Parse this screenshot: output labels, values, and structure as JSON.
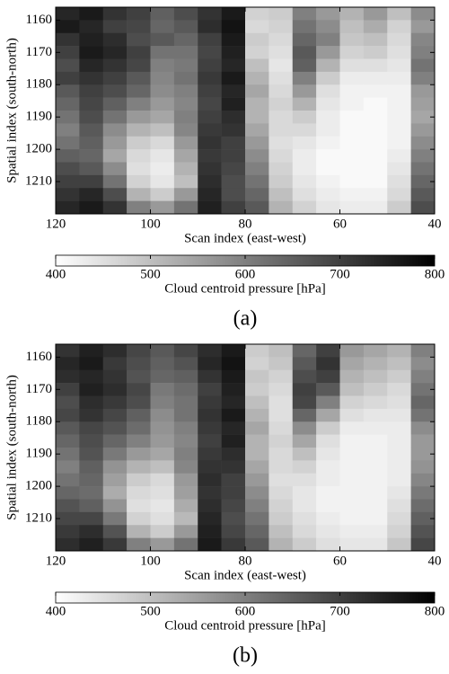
{
  "chart_data": [
    {
      "type": "heatmap",
      "caption": "(a)",
      "x_label": "Scan index (east-west)",
      "y_label": "Spatial index (south-north)",
      "xlim": [
        120,
        40
      ],
      "xticks": [
        120,
        100,
        80,
        60,
        40
      ],
      "ylim": [
        1220,
        1156
      ],
      "yticks": [
        1160,
        1170,
        1180,
        1190,
        1200,
        1210
      ],
      "x": [
        117.5,
        112.5,
        107.5,
        102.5,
        97.5,
        92.5,
        87.5,
        82.5,
        77.5,
        72.5,
        67.5,
        62.5,
        57.5,
        52.5,
        47.5,
        42.5
      ],
      "y": [
        1158,
        1162,
        1166,
        1170,
        1174,
        1178,
        1182,
        1186,
        1190,
        1194,
        1198,
        1202,
        1206,
        1210,
        1214,
        1218
      ],
      "z": [
        [
          740,
          760,
          720,
          700,
          650,
          680,
          720,
          760,
          470,
          480,
          600,
          560,
          520,
          560,
          500,
          580
        ],
        [
          760,
          740,
          700,
          690,
          640,
          660,
          730,
          770,
          460,
          470,
          620,
          580,
          500,
          530,
          470,
          560
        ],
        [
          720,
          750,
          730,
          680,
          660,
          640,
          700,
          760,
          480,
          460,
          640,
          600,
          490,
          500,
          460,
          590
        ],
        [
          700,
          760,
          740,
          700,
          620,
          620,
          690,
          750,
          470,
          450,
          660,
          560,
          470,
          480,
          450,
          600
        ],
        [
          680,
          740,
          720,
          690,
          600,
          610,
          700,
          740,
          500,
          440,
          650,
          520,
          450,
          450,
          440,
          620
        ],
        [
          700,
          720,
          700,
          660,
          590,
          620,
          710,
          760,
          520,
          450,
          600,
          480,
          430,
          430,
          430,
          600
        ],
        [
          660,
          700,
          680,
          640,
          580,
          600,
          700,
          740,
          540,
          460,
          560,
          450,
          420,
          420,
          420,
          560
        ],
        [
          640,
          690,
          650,
          600,
          560,
          590,
          690,
          750,
          520,
          470,
          520,
          440,
          420,
          410,
          420,
          550
        ],
        [
          620,
          680,
          620,
          560,
          540,
          600,
          700,
          730,
          520,
          460,
          480,
          430,
          410,
          410,
          420,
          540
        ],
        [
          600,
          660,
          580,
          520,
          500,
          590,
          710,
          720,
          540,
          460,
          460,
          430,
          410,
          410,
          420,
          560
        ],
        [
          620,
          650,
          560,
          480,
          460,
          560,
          720,
          700,
          560,
          450,
          440,
          420,
          410,
          410,
          420,
          580
        ],
        [
          650,
          640,
          540,
          460,
          440,
          540,
          710,
          700,
          580,
          460,
          430,
          410,
          410,
          410,
          430,
          600
        ],
        [
          680,
          660,
          580,
          450,
          430,
          520,
          720,
          690,
          600,
          470,
          430,
          410,
          410,
          410,
          440,
          620
        ],
        [
          700,
          700,
          620,
          470,
          440,
          500,
          730,
          680,
          620,
          480,
          440,
          420,
          410,
          410,
          450,
          640
        ],
        [
          720,
          740,
          680,
          520,
          480,
          560,
          740,
          680,
          640,
          500,
          450,
          430,
          420,
          420,
          460,
          660
        ],
        [
          740,
          760,
          720,
          600,
          560,
          620,
          750,
          700,
          660,
          520,
          470,
          440,
          430,
          430,
          480,
          680
        ]
      ],
      "colorbar": {
        "label": "Cloud centroid pressure [hPa]",
        "lim": [
          400,
          800
        ],
        "ticks": [
          400,
          500,
          600,
          700,
          800
        ],
        "colors": [
          "#ffffff",
          "#000000"
        ]
      }
    },
    {
      "type": "heatmap",
      "caption": "(b)",
      "x_label": "Scan index (east-west)",
      "y_label": "Spatial index (south-north)",
      "xlim": [
        120,
        40
      ],
      "xticks": [
        120,
        100,
        80,
        60,
        40
      ],
      "ylim": [
        1220,
        1156
      ],
      "yticks": [
        1160,
        1170,
        1180,
        1190,
        1200,
        1210
      ],
      "x": [
        117.5,
        112.5,
        107.5,
        102.5,
        97.5,
        92.5,
        87.5,
        82.5,
        77.5,
        72.5,
        67.5,
        62.5,
        57.5,
        52.5,
        47.5,
        42.5
      ],
      "y": [
        1158,
        1162,
        1166,
        1170,
        1174,
        1178,
        1182,
        1186,
        1190,
        1194,
        1198,
        1202,
        1206,
        1210,
        1214,
        1218
      ],
      "z": [
        [
          720,
          750,
          730,
          690,
          660,
          690,
          730,
          760,
          480,
          500,
          640,
          700,
          560,
          540,
          520,
          600
        ],
        [
          740,
          760,
          710,
          680,
          650,
          670,
          740,
          770,
          470,
          490,
          660,
          720,
          540,
          520,
          500,
          580
        ],
        [
          730,
          740,
          720,
          670,
          640,
          650,
          720,
          760,
          490,
          470,
          680,
          700,
          520,
          500,
          480,
          600
        ],
        [
          700,
          750,
          730,
          690,
          610,
          630,
          700,
          750,
          480,
          460,
          700,
          660,
          500,
          480,
          460,
          620
        ],
        [
          680,
          730,
          710,
          680,
          600,
          620,
          710,
          740,
          500,
          450,
          690,
          600,
          470,
          460,
          450,
          640
        ],
        [
          690,
          720,
          690,
          650,
          580,
          620,
          720,
          760,
          520,
          450,
          640,
          540,
          450,
          440,
          440,
          620
        ],
        [
          660,
          690,
          670,
          630,
          570,
          600,
          710,
          740,
          540,
          460,
          580,
          480,
          430,
          430,
          430,
          580
        ],
        [
          640,
          680,
          640,
          600,
          560,
          590,
          700,
          750,
          520,
          470,
          540,
          450,
          420,
          420,
          430,
          560
        ],
        [
          620,
          670,
          610,
          560,
          540,
          600,
          710,
          730,
          520,
          460,
          500,
          440,
          420,
          420,
          430,
          560
        ],
        [
          600,
          650,
          570,
          520,
          500,
          590,
          720,
          720,
          540,
          460,
          470,
          430,
          420,
          420,
          430,
          570
        ],
        [
          620,
          640,
          550,
          480,
          460,
          560,
          730,
          700,
          560,
          450,
          450,
          430,
          420,
          420,
          430,
          590
        ],
        [
          640,
          630,
          530,
          460,
          450,
          550,
          720,
          700,
          580,
          460,
          440,
          420,
          420,
          420,
          440,
          610
        ],
        [
          670,
          650,
          570,
          450,
          440,
          530,
          730,
          690,
          600,
          470,
          440,
          420,
          420,
          420,
          450,
          630
        ],
        [
          690,
          690,
          610,
          470,
          450,
          510,
          740,
          680,
          620,
          480,
          450,
          430,
          420,
          420,
          460,
          650
        ],
        [
          710,
          730,
          670,
          520,
          480,
          560,
          750,
          690,
          640,
          500,
          460,
          440,
          430,
          430,
          470,
          670
        ],
        [
          730,
          750,
          710,
          600,
          560,
          620,
          760,
          710,
          660,
          520,
          480,
          450,
          440,
          440,
          490,
          690
        ]
      ],
      "colorbar": {
        "label": "Cloud centroid pressure [hPa]",
        "lim": [
          400,
          800
        ],
        "ticks": [
          400,
          500,
          600,
          700,
          800
        ],
        "colors": [
          "#ffffff",
          "#000000"
        ]
      }
    }
  ]
}
